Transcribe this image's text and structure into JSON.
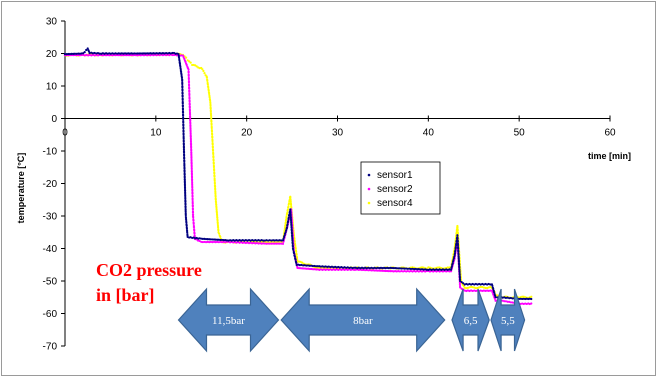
{
  "chart_data": {
    "type": "scatter",
    "xlabel": "time [min]",
    "ylabel": "temperature [°C]",
    "xlim": [
      0,
      60
    ],
    "ylim": [
      -70,
      30
    ],
    "xticks": [
      0,
      10,
      20,
      30,
      40,
      50,
      60
    ],
    "yticks": [
      30,
      20,
      10,
      0,
      -10,
      -20,
      -30,
      -40,
      -50,
      -60,
      -70
    ],
    "grid": false,
    "legend_position": "center-right",
    "series": [
      {
        "name": "sensor1",
        "color": "#000080",
        "points": [
          [
            0,
            19.8
          ],
          [
            2,
            20
          ],
          [
            2.5,
            21.5
          ],
          [
            2.7,
            20.2
          ],
          [
            4,
            20
          ],
          [
            8,
            20
          ],
          [
            12,
            20.1
          ],
          [
            12.5,
            19.8
          ],
          [
            12.9,
            12
          ],
          [
            13.1,
            -10
          ],
          [
            13.3,
            -30
          ],
          [
            13.5,
            -36.5
          ],
          [
            15,
            -37
          ],
          [
            18,
            -37.5
          ],
          [
            22,
            -37.5
          ],
          [
            24,
            -37.5
          ],
          [
            24.4,
            -34
          ],
          [
            24.8,
            -28
          ],
          [
            25.1,
            -40
          ],
          [
            25.5,
            -45
          ],
          [
            28,
            -45.5
          ],
          [
            32,
            -46
          ],
          [
            36,
            -46
          ],
          [
            40,
            -46.5
          ],
          [
            42.5,
            -46.5
          ],
          [
            42.9,
            -42
          ],
          [
            43.2,
            -36
          ],
          [
            43.5,
            -50
          ],
          [
            44,
            -51
          ],
          [
            47,
            -51
          ],
          [
            47.4,
            -55
          ],
          [
            48,
            -55
          ],
          [
            50,
            -55.5
          ],
          [
            51.5,
            -55.5
          ]
        ]
      },
      {
        "name": "sensor2",
        "color": "#ff00ff",
        "points": [
          [
            0,
            19.5
          ],
          [
            2,
            19.5
          ],
          [
            4,
            19.5
          ],
          [
            8,
            19.5
          ],
          [
            12,
            19.6
          ],
          [
            13,
            19.3
          ],
          [
            13.6,
            15
          ],
          [
            13.9,
            -10
          ],
          [
            14.1,
            -30
          ],
          [
            14.3,
            -37
          ],
          [
            15,
            -38
          ],
          [
            18,
            -38
          ],
          [
            22,
            -38.5
          ],
          [
            24,
            -38.5
          ],
          [
            24.5,
            -33
          ],
          [
            24.9,
            -28
          ],
          [
            25.2,
            -41
          ],
          [
            25.6,
            -46
          ],
          [
            28,
            -46.5
          ],
          [
            32,
            -46.5
          ],
          [
            36,
            -47
          ],
          [
            40,
            -47
          ],
          [
            42.5,
            -47
          ],
          [
            42.9,
            -43
          ],
          [
            43.2,
            -37
          ],
          [
            43.5,
            -52
          ],
          [
            44,
            -53
          ],
          [
            47,
            -53
          ],
          [
            47.4,
            -56
          ],
          [
            48,
            -56
          ],
          [
            50,
            -57
          ],
          [
            51.5,
            -57
          ]
        ]
      },
      {
        "name": "sensor4",
        "color": "#ffff00",
        "points": [
          [
            0,
            19.5
          ],
          [
            2,
            19.6
          ],
          [
            4,
            19.6
          ],
          [
            8,
            19.6
          ],
          [
            12,
            19.8
          ],
          [
            13,
            19.7
          ],
          [
            13.5,
            18
          ],
          [
            14,
            16.5
          ],
          [
            15,
            15.5
          ],
          [
            15.6,
            13
          ],
          [
            16,
            5
          ],
          [
            16.3,
            -10
          ],
          [
            16.6,
            -25
          ],
          [
            16.9,
            -35
          ],
          [
            17.3,
            -38
          ],
          [
            20,
            -38
          ],
          [
            23,
            -38
          ],
          [
            24,
            -38
          ],
          [
            24.4,
            -30
          ],
          [
            24.8,
            -24
          ],
          [
            25.2,
            -36
          ],
          [
            25.6,
            -44
          ],
          [
            28,
            -46
          ],
          [
            32,
            -46
          ],
          [
            36,
            -46
          ],
          [
            40,
            -46
          ],
          [
            42.5,
            -46
          ],
          [
            42.9,
            -40
          ],
          [
            43.2,
            -33
          ],
          [
            43.6,
            -50
          ],
          [
            44,
            -52
          ],
          [
            47,
            -52
          ],
          [
            47.4,
            -54
          ],
          [
            48,
            -55
          ],
          [
            50,
            -55
          ],
          [
            51.5,
            -55
          ]
        ]
      }
    ],
    "annotations": {
      "pressure_label_line1": "CO2 pressure",
      "pressure_label_line2": "in [bar]",
      "arrows": [
        {
          "label": "11,5bar",
          "x_start": 12.5,
          "x_end": 23.5
        },
        {
          "label": "8bar",
          "x_start": 23.8,
          "x_end": 41.8
        },
        {
          "label": "6,5",
          "x_start": 42.6,
          "x_end": 46.7
        },
        {
          "label": "5,5",
          "x_start": 46.9,
          "x_end": 50.6
        }
      ],
      "arrow_color": "#4f81bd"
    }
  }
}
